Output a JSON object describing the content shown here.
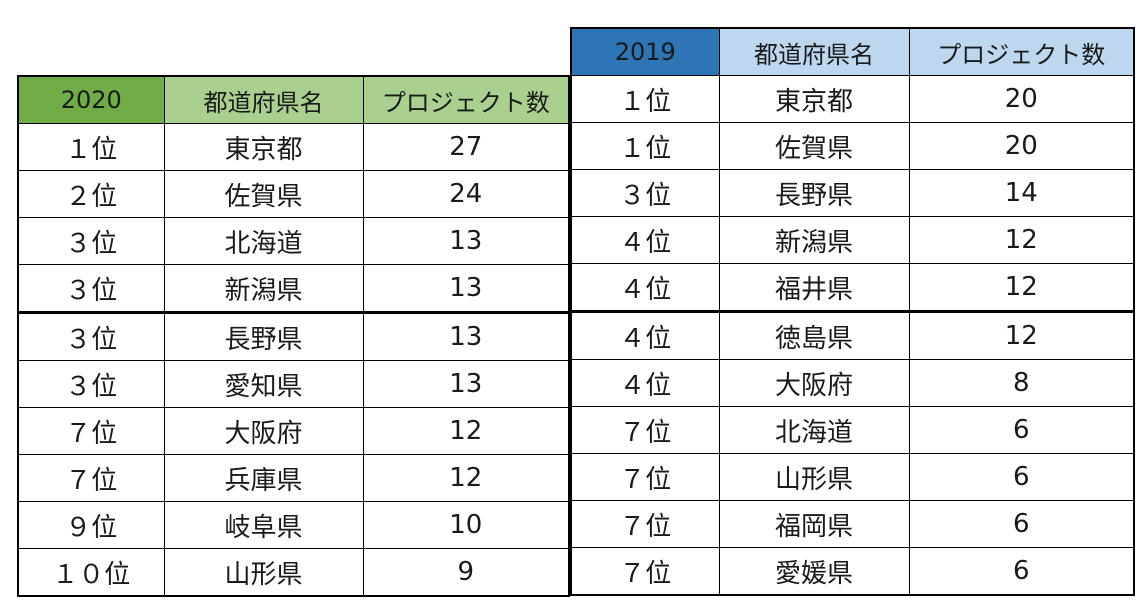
{
  "tables": [
    {
      "id": "table-2020",
      "headers": [
        "2020",
        "都道府県名",
        "プロジェクト数"
      ],
      "theme": {
        "header_primary": "#70AD47",
        "header_secondary": "#A9D08E",
        "border": "#000000",
        "text": "#1a1a1a"
      },
      "seam_top_row_index": 4,
      "rows": [
        [
          "１位",
          "東京都",
          "27"
        ],
        [
          "２位",
          "佐賀県",
          "24"
        ],
        [
          "３位",
          "北海道",
          "13"
        ],
        [
          "３位",
          "新潟県",
          "13"
        ],
        [
          "３位",
          "長野県",
          "13"
        ],
        [
          "３位",
          "愛知県",
          "13"
        ],
        [
          "７位",
          "大阪府",
          "12"
        ],
        [
          "７位",
          "兵庫県",
          "12"
        ],
        [
          "９位",
          "岐阜県",
          "10"
        ],
        [
          "１０位",
          "山形県",
          "9"
        ]
      ]
    },
    {
      "id": "table-2019",
      "headers": [
        "2019",
        "都道府県名",
        "プロジェクト数"
      ],
      "theme": {
        "header_primary": "#2E75B6",
        "header_secondary": "#BDD7EE",
        "border": "#000000",
        "text": "#1a1a1a"
      },
      "seam_top_row_index": 5,
      "rows": [
        [
          "１位",
          "東京都",
          "20"
        ],
        [
          "１位",
          "佐賀県",
          "20"
        ],
        [
          "３位",
          "長野県",
          "14"
        ],
        [
          "４位",
          "新潟県",
          "12"
        ],
        [
          "４位",
          "福井県",
          "12"
        ],
        [
          "４位",
          "徳島県",
          "12"
        ],
        [
          "４位",
          "大阪府",
          "8"
        ],
        [
          "７位",
          "北海道",
          "6"
        ],
        [
          "７位",
          "山形県",
          "6"
        ],
        [
          "７位",
          "福岡県",
          "6"
        ],
        [
          "７位",
          "愛媛県",
          "6"
        ]
      ]
    }
  ],
  "chart_data": [
    {
      "type": "table",
      "title": "2020",
      "columns": [
        "2020",
        "都道府県名",
        "プロジェクト数"
      ],
      "rows": [
        {
          "rank": "１位",
          "prefecture": "東京都",
          "projects": 27
        },
        {
          "rank": "２位",
          "prefecture": "佐賀県",
          "projects": 24
        },
        {
          "rank": "３位",
          "prefecture": "北海道",
          "projects": 13
        },
        {
          "rank": "３位",
          "prefecture": "新潟県",
          "projects": 13
        },
        {
          "rank": "３位",
          "prefecture": "長野県",
          "projects": 13
        },
        {
          "rank": "３位",
          "prefecture": "愛知県",
          "projects": 13
        },
        {
          "rank": "７位",
          "prefecture": "大阪府",
          "projects": 12
        },
        {
          "rank": "７位",
          "prefecture": "兵庫県",
          "projects": 12
        },
        {
          "rank": "９位",
          "prefecture": "岐阜県",
          "projects": 10
        },
        {
          "rank": "１０位",
          "prefecture": "山形県",
          "projects": 9
        }
      ]
    },
    {
      "type": "table",
      "title": "2019",
      "columns": [
        "2019",
        "都道府県名",
        "プロジェクト数"
      ],
      "rows": [
        {
          "rank": "１位",
          "prefecture": "東京都",
          "projects": 20
        },
        {
          "rank": "１位",
          "prefecture": "佐賀県",
          "projects": 20
        },
        {
          "rank": "３位",
          "prefecture": "長野県",
          "projects": 14
        },
        {
          "rank": "４位",
          "prefecture": "新潟県",
          "projects": 12
        },
        {
          "rank": "４位",
          "prefecture": "福井県",
          "projects": 12
        },
        {
          "rank": "４位",
          "prefecture": "徳島県",
          "projects": 12
        },
        {
          "rank": "４位",
          "prefecture": "大阪府",
          "projects": 8
        },
        {
          "rank": "７位",
          "prefecture": "北海道",
          "projects": 6
        },
        {
          "rank": "７位",
          "prefecture": "山形県",
          "projects": 6
        },
        {
          "rank": "７位",
          "prefecture": "福岡県",
          "projects": 6
        },
        {
          "rank": "７位",
          "prefecture": "愛媛県",
          "projects": 6
        }
      ]
    }
  ]
}
